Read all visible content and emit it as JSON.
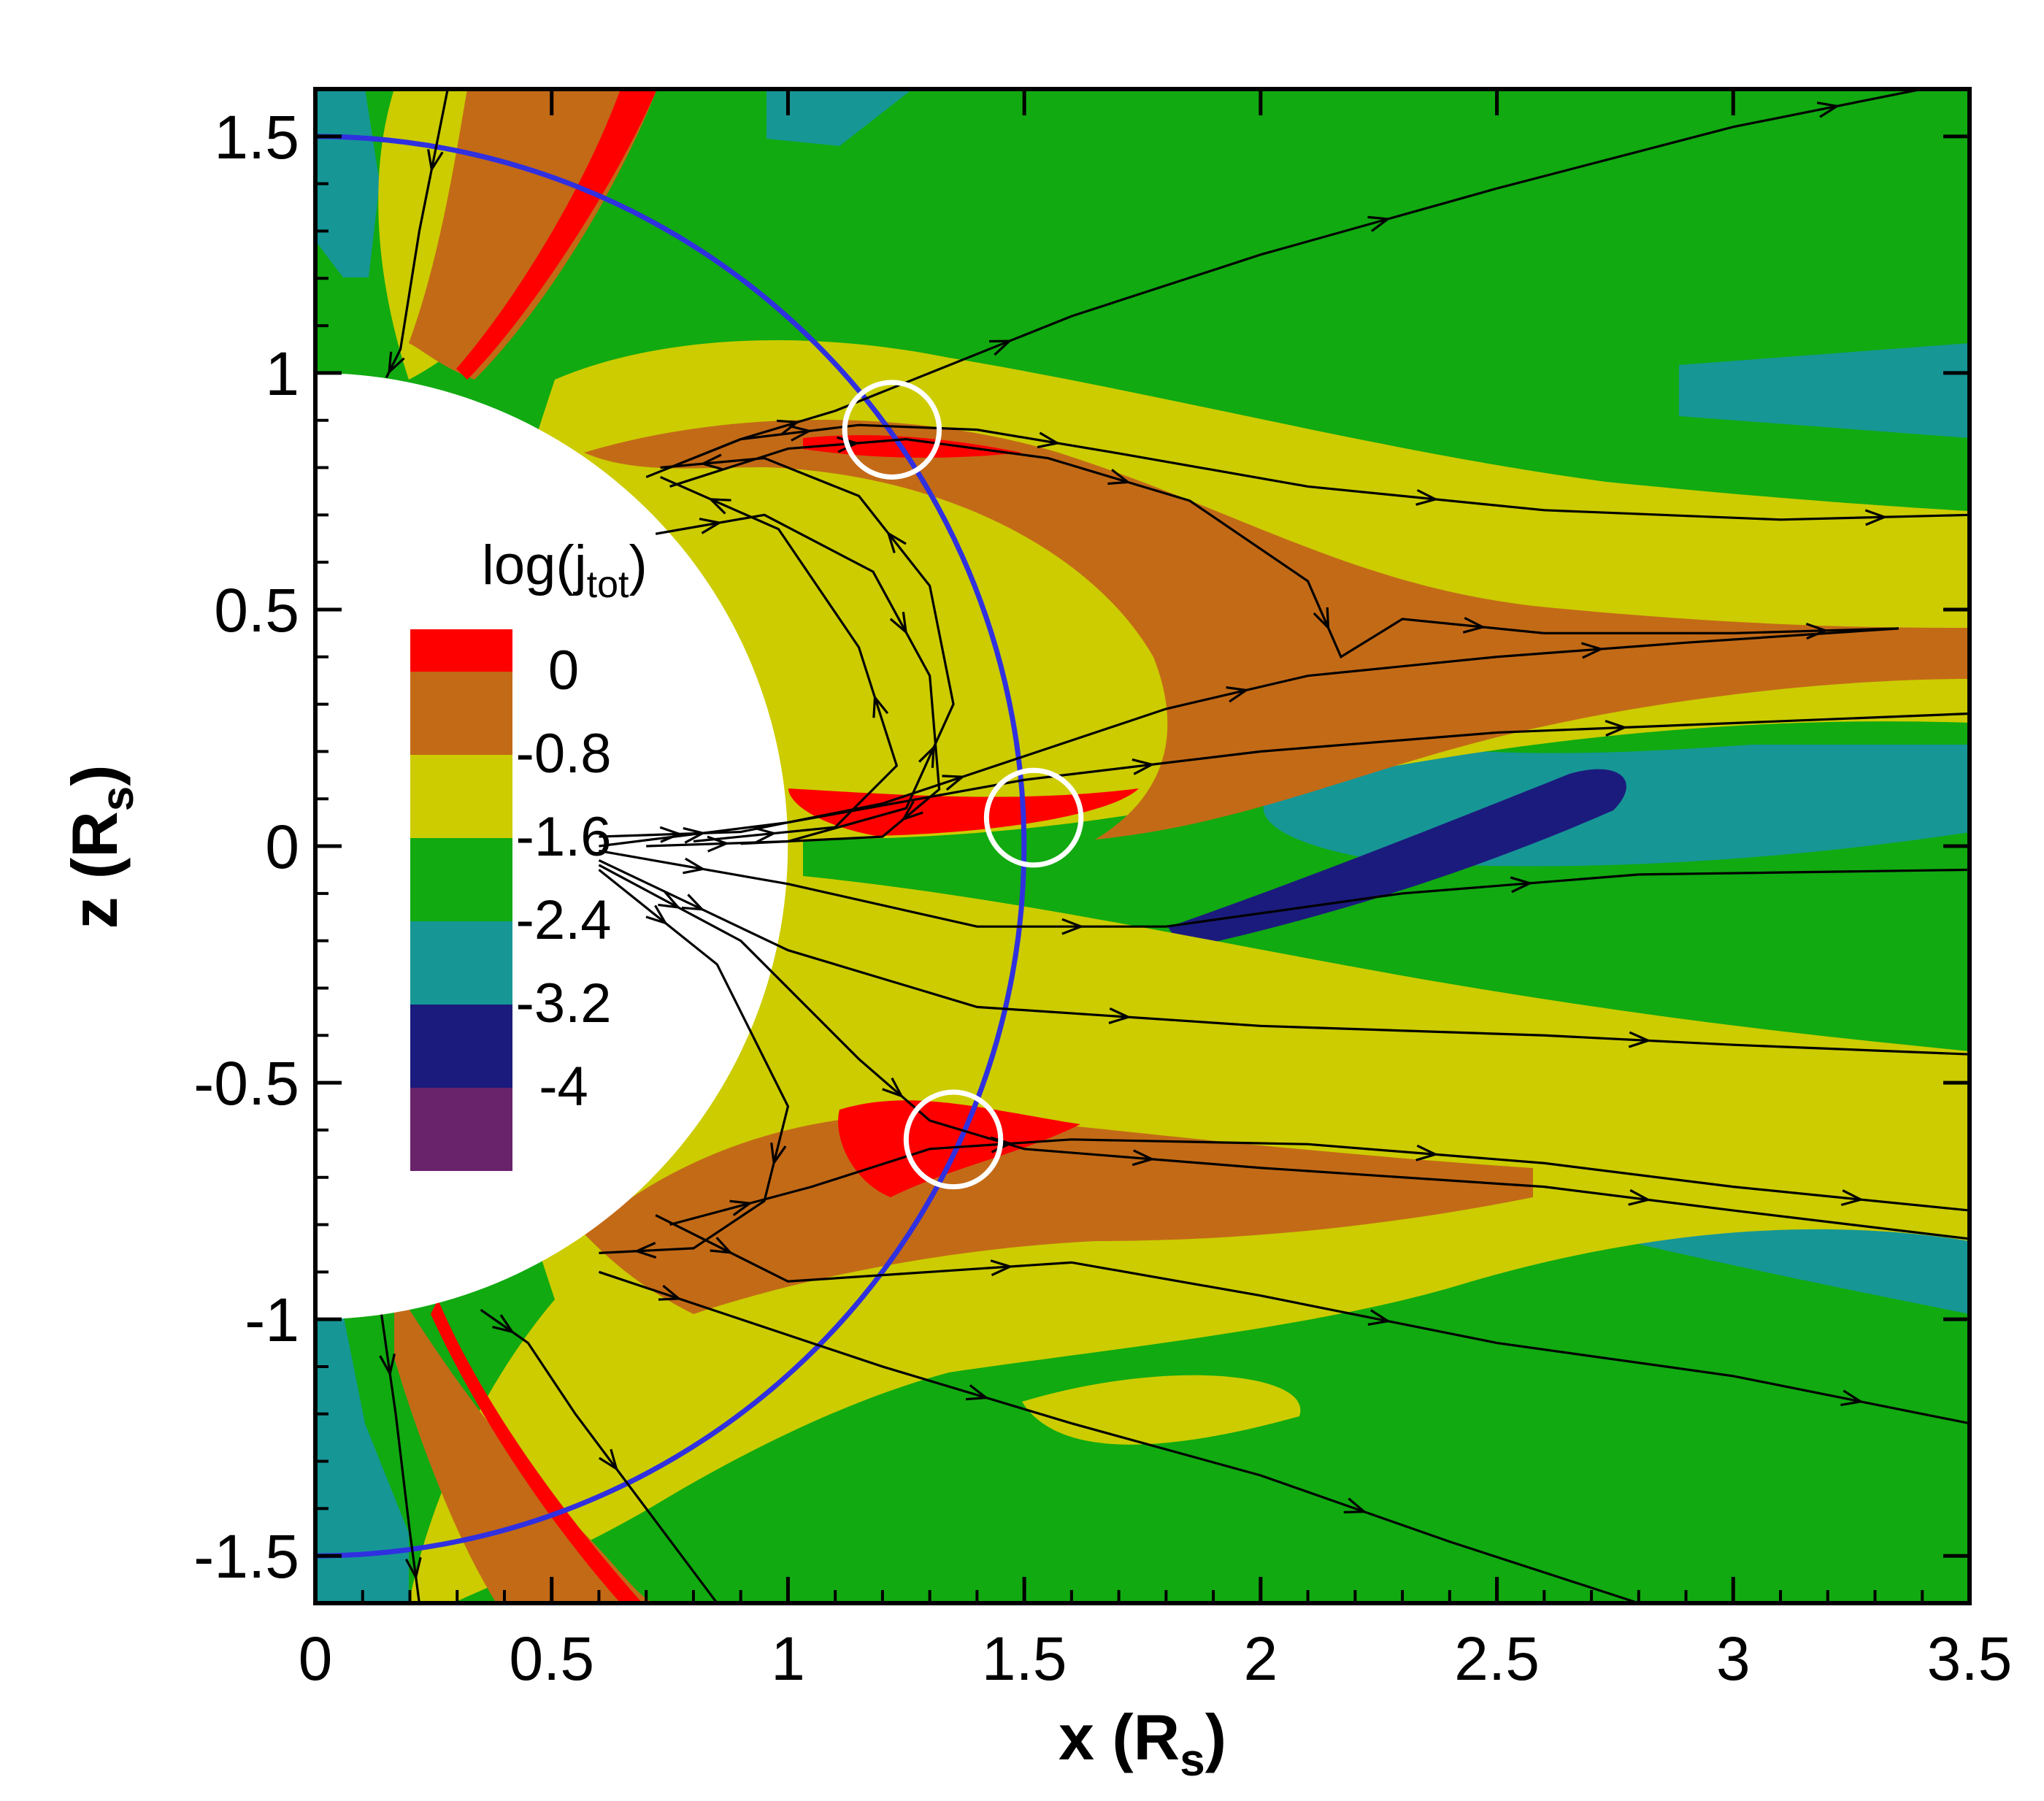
{
  "chart_data": {
    "type": "heatmap",
    "xlabel": "x (R",
    "xlabel_sub": "s",
    "xlabel_close": ")",
    "ylabel": "z (R",
    "ylabel_sub": "s",
    "ylabel_close": ")",
    "xlim": [
      0,
      3.5
    ],
    "ylim": [
      -1.6,
      1.6
    ],
    "x_ticks": [
      0,
      0.5,
      1,
      1.5,
      2,
      2.5,
      3,
      3.5
    ],
    "x_tick_labels": [
      "0",
      "0.5",
      "1",
      "1.5",
      "2",
      "2.5",
      "3",
      "3.5"
    ],
    "y_ticks": [
      -1.5,
      -1,
      -0.5,
      0,
      0.5,
      1,
      1.5
    ],
    "y_tick_labels": [
      "-1.5",
      "-1",
      "-0.5",
      "0",
      "0.5",
      "1",
      "1.5"
    ],
    "grid": false,
    "legend": {
      "title_main": "log(j",
      "title_sub": "tot",
      "title_close": ")",
      "placement": "left-center",
      "levels": [
        {
          "label": "",
          "color": "#fe0000"
        },
        {
          "label": "0",
          "color": "#c36a17"
        },
        {
          "label": "-0.8",
          "color": "#cccc00"
        },
        {
          "label": "-1.6",
          "color": "#11aa11"
        },
        {
          "label": "-2.4",
          "color": "#179696"
        },
        {
          "label": "-3.2",
          "color": "#1b1b7d"
        },
        {
          "label": "-4",
          "color": "#68236b"
        }
      ]
    },
    "body": {
      "center": [
        0,
        0
      ],
      "radius": 1.0
    },
    "orbit_circle": {
      "radius": 1.5,
      "color": "#3030e0"
    },
    "markers": [
      {
        "x": 1.22,
        "y": 0.88,
        "r": 0.1
      },
      {
        "x": 1.52,
        "y": 0.06,
        "r": 0.1
      },
      {
        "x": 1.35,
        "y": -0.62,
        "r": 0.1
      }
    ],
    "field_lines": [
      {
        "dir": -1,
        "points": [
          [
            3.4,
            1.6
          ],
          [
            3.0,
            1.52
          ],
          [
            2.5,
            1.39
          ],
          [
            2.0,
            1.25
          ],
          [
            1.6,
            1.12
          ],
          [
            1.3,
            1.0
          ],
          [
            1.1,
            0.92
          ],
          [
            0.9,
            0.86
          ],
          [
            0.75,
            0.8
          ]
        ]
      },
      {
        "dir": -1,
        "points": [
          [
            3.5,
            0.7
          ],
          [
            3.1,
            0.69
          ],
          [
            2.6,
            0.71
          ],
          [
            2.1,
            0.76
          ],
          [
            1.7,
            0.83
          ],
          [
            1.4,
            0.88
          ],
          [
            1.15,
            0.89
          ],
          [
            0.9,
            0.86
          ],
          [
            0.7,
            0.78
          ]
        ]
      },
      {
        "dir": -1,
        "points": [
          [
            3.35,
            0.46
          ],
          [
            3.0,
            0.45
          ],
          [
            2.6,
            0.45
          ],
          [
            2.3,
            0.48
          ],
          [
            2.17,
            0.4
          ],
          [
            2.1,
            0.56
          ],
          [
            1.85,
            0.73
          ],
          [
            1.55,
            0.82
          ],
          [
            1.25,
            0.86
          ],
          [
            1.0,
            0.84
          ],
          [
            0.75,
            0.76
          ]
        ]
      },
      {
        "dir": 1,
        "points": [
          [
            0.6,
            0.02
          ],
          [
            0.9,
            0.03
          ],
          [
            1.2,
            0.09
          ],
          [
            1.5,
            0.19
          ],
          [
            1.8,
            0.29
          ],
          [
            2.1,
            0.36
          ],
          [
            2.5,
            0.4
          ],
          [
            2.9,
            0.43
          ],
          [
            3.35,
            0.46
          ]
        ]
      },
      {
        "dir": -1,
        "points": [
          [
            0.73,
            0.8
          ],
          [
            0.95,
            0.82
          ],
          [
            1.15,
            0.74
          ],
          [
            1.3,
            0.55
          ],
          [
            1.35,
            0.3
          ],
          [
            1.25,
            0.08
          ],
          [
            1.0,
            0.01
          ],
          [
            0.7,
            0.0
          ]
        ]
      },
      {
        "dir": -1,
        "points": [
          [
            0.73,
            0.78
          ],
          [
            0.98,
            0.67
          ],
          [
            1.15,
            0.42
          ],
          [
            1.23,
            0.17
          ],
          [
            1.1,
            0.04
          ],
          [
            0.8,
            0.01
          ]
        ]
      },
      {
        "dir": 1,
        "points": [
          [
            0.72,
            0.66
          ],
          [
            0.95,
            0.7
          ],
          [
            1.18,
            0.58
          ],
          [
            1.3,
            0.36
          ],
          [
            1.32,
            0.12
          ],
          [
            1.2,
            0.02
          ],
          [
            0.9,
            0.005
          ]
        ]
      },
      {
        "dir": 1,
        "points": [
          [
            0.6,
            0.0
          ],
          [
            1.0,
            0.05
          ],
          [
            1.5,
            0.14
          ],
          [
            2.0,
            0.2
          ],
          [
            2.5,
            0.24
          ],
          [
            3.0,
            0.26
          ],
          [
            3.5,
            0.28
          ]
        ]
      },
      {
        "dir": 1,
        "points": [
          [
            0.6,
            -0.01
          ],
          [
            1.0,
            -0.08
          ],
          [
            1.4,
            -0.17
          ],
          [
            1.8,
            -0.17
          ],
          [
            2.3,
            -0.1
          ],
          [
            2.8,
            -0.06
          ],
          [
            3.5,
            -0.05
          ]
        ]
      },
      {
        "dir": 1,
        "points": [
          [
            0.6,
            -0.03
          ],
          [
            1.0,
            -0.22
          ],
          [
            1.4,
            -0.34
          ],
          [
            2.0,
            -0.38
          ],
          [
            2.6,
            -0.4
          ],
          [
            3.0,
            -0.42
          ],
          [
            3.5,
            -0.44
          ]
        ]
      },
      {
        "dir": 1,
        "points": [
          [
            0.75,
            -0.8
          ],
          [
            1.05,
            -0.72
          ],
          [
            1.3,
            -0.64
          ],
          [
            1.6,
            -0.62
          ],
          [
            2.1,
            -0.63
          ],
          [
            2.6,
            -0.67
          ],
          [
            3.0,
            -0.72
          ],
          [
            3.5,
            -0.77
          ]
        ]
      },
      {
        "dir": 1,
        "points": [
          [
            0.6,
            -0.04
          ],
          [
            0.9,
            -0.2
          ],
          [
            1.15,
            -0.45
          ],
          [
            1.3,
            -0.58
          ],
          [
            1.5,
            -0.64
          ],
          [
            2.0,
            -0.68
          ],
          [
            2.6,
            -0.72
          ],
          [
            3.0,
            -0.77
          ],
          [
            3.5,
            -0.83
          ]
        ]
      },
      {
        "dir": 1,
        "points": [
          [
            0.6,
            -0.05
          ],
          [
            0.85,
            -0.25
          ],
          [
            1.0,
            -0.55
          ],
          [
            0.95,
            -0.75
          ],
          [
            0.8,
            -0.85
          ],
          [
            0.6,
            -0.86
          ]
        ]
      },
      {
        "dir": 1,
        "points": [
          [
            0.72,
            -0.78
          ],
          [
            1.0,
            -0.92
          ],
          [
            1.3,
            -0.9
          ],
          [
            1.6,
            -0.88
          ],
          [
            2.0,
            -0.95
          ],
          [
            2.5,
            -1.05
          ],
          [
            3.0,
            -1.12
          ],
          [
            3.5,
            -1.22
          ]
        ]
      },
      {
        "dir": 1,
        "points": [
          [
            0.6,
            -0.9
          ],
          [
            0.9,
            -1.0
          ],
          [
            1.2,
            -1.1
          ],
          [
            1.6,
            -1.22
          ],
          [
            2.0,
            -1.33
          ],
          [
            2.4,
            -1.47
          ],
          [
            2.8,
            -1.6
          ]
        ]
      },
      {
        "dir": 1,
        "points": [
          [
            0.35,
            -0.98
          ],
          [
            0.45,
            -1.05
          ],
          [
            0.55,
            -1.2
          ],
          [
            0.7,
            -1.4
          ],
          [
            0.85,
            -1.6
          ]
        ]
      },
      {
        "dir": 1,
        "points": [
          [
            0.28,
            1.6
          ],
          [
            0.22,
            1.3
          ],
          [
            0.18,
            1.05
          ],
          [
            0.15,
            0.99
          ]
        ]
      },
      {
        "dir": 1,
        "points": [
          [
            0.14,
            -0.99
          ],
          [
            0.17,
            -1.2
          ],
          [
            0.2,
            -1.45
          ],
          [
            0.22,
            -1.6
          ]
        ]
      }
    ]
  }
}
